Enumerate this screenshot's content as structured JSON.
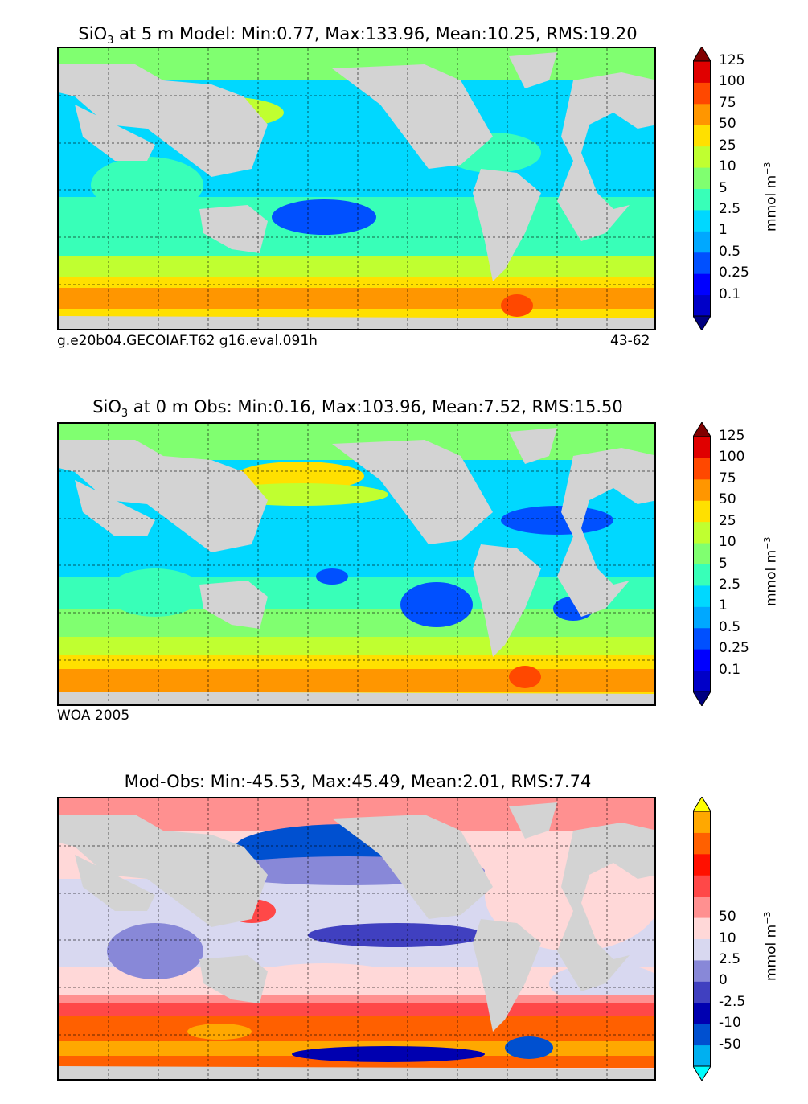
{
  "panels": [
    {
      "id": "model",
      "title_prefix": "SiO",
      "title_sub": "3",
      "title_rest": " at 5 m Model: Min:0.77, Max:133.96, Mean:10.25, RMS:19.20",
      "footer_left": "g.e20b04.GECOIAF.T62 g16.eval.091h",
      "footer_right": "43-62",
      "colorbar": {
        "unit": "mmol m",
        "unit_sup": "−3",
        "ticks": [
          "0.1",
          "0.25",
          "0.5",
          "1",
          "2.5",
          "5",
          "10",
          "25",
          "50",
          "75",
          "100",
          "125"
        ],
        "colors": [
          "#000080",
          "#0000c8",
          "#0000ff",
          "#0050ff",
          "#00a8ff",
          "#00d8ff",
          "#38ffb8",
          "#80ff70",
          "#c0ff30",
          "#ffe000",
          "#ff9600",
          "#ff4800",
          "#e00000",
          "#800000"
        ]
      }
    },
    {
      "id": "obs",
      "title_prefix": "SiO",
      "title_sub": "3",
      "title_rest": " at 0 m Obs: Min:0.16, Max:103.96, Mean:7.52, RMS:15.50",
      "footer_left": "WOA 2005",
      "footer_right": "",
      "colorbar": {
        "unit": "mmol m",
        "unit_sup": "−3",
        "ticks": [
          "0.1",
          "0.25",
          "0.5",
          "1",
          "2.5",
          "5",
          "10",
          "25",
          "50",
          "75",
          "100",
          "125"
        ],
        "colors": [
          "#000080",
          "#0000c8",
          "#0000ff",
          "#0050ff",
          "#00a8ff",
          "#00d8ff",
          "#38ffb8",
          "#80ff70",
          "#c0ff30",
          "#ffe000",
          "#ff9600",
          "#ff4800",
          "#e00000",
          "#800000"
        ]
      }
    },
    {
      "id": "diff",
      "title_prefix": "",
      "title_sub": "",
      "title_rest": "Mod-Obs: Min:-45.53, Max:45.49, Mean:2.01, RMS:7.74",
      "footer_left": "",
      "footer_right": "",
      "colorbar": {
        "unit": "mmol m",
        "unit_sup": "−3",
        "ticks": [
          "-50",
          "-10",
          "-2.5",
          "0",
          "2.5",
          "10",
          "50"
        ],
        "colors": [
          "#00ffff",
          "#00b0f0",
          "#0050d0",
          "#0000b0",
          "#4040c0",
          "#8888d8",
          "#d8d8f0",
          "#ffd8d8",
          "#ff9090",
          "#ff4848",
          "#ff1000",
          "#ff6000",
          "#ffa800",
          "#ffff00"
        ]
      }
    }
  ],
  "chart_data": {
    "type": "heatmap",
    "variable": "SiO3",
    "panels": [
      {
        "name": "Model",
        "depth_m": 5,
        "min": 0.77,
        "max": 133.96,
        "mean": 10.25,
        "rms": 19.2
      },
      {
        "name": "Obs",
        "depth_m": 0,
        "min": 0.16,
        "max": 103.96,
        "mean": 7.52,
        "rms": 15.5
      },
      {
        "name": "Mod-Obs",
        "min": -45.53,
        "max": 45.49,
        "mean": 2.01,
        "rms": 7.74
      }
    ]
  }
}
